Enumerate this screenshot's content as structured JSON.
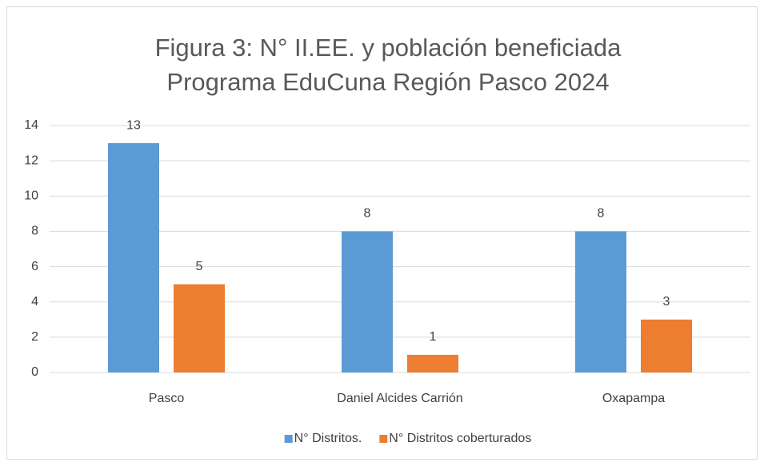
{
  "chart_data": {
    "type": "bar",
    "title": [
      "Figura 3: N° II.EE. y población beneficiada",
      "Programa EduCuna Región Pasco 2024"
    ],
    "categories": [
      "Pasco",
      "Daniel Alcides Carrión",
      "Oxapampa"
    ],
    "series": [
      {
        "name": "N° Distritos.",
        "color": "#5b9bd5",
        "values": [
          13,
          8,
          8
        ]
      },
      {
        "name": "N° Distritos coberturados",
        "color": "#ed7d31",
        "values": [
          5,
          1,
          3
        ]
      }
    ],
    "ylim": [
      0,
      14
    ],
    "yticks": [
      0,
      2,
      4,
      6,
      8,
      10,
      12,
      14
    ],
    "grid": true,
    "legend": "bottom"
  }
}
